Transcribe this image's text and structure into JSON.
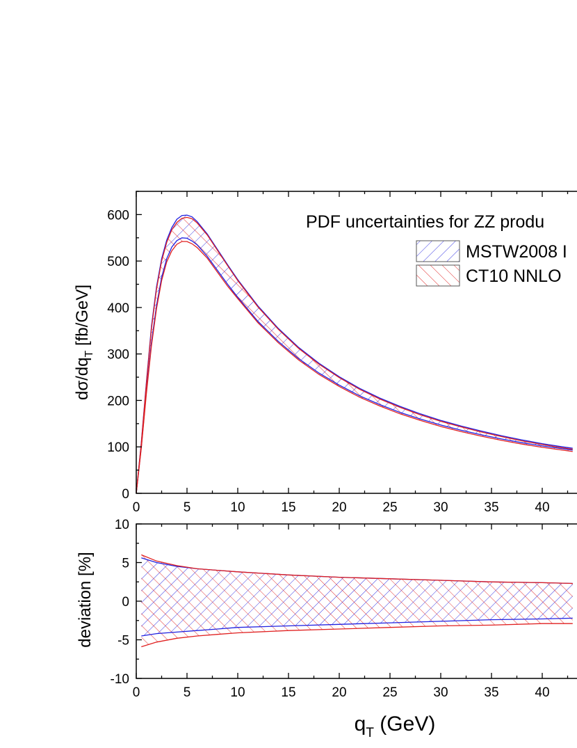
{
  "chart_data": [
    {
      "type": "area",
      "panel": "top",
      "title": "PDF uncertainties for ZZ produ",
      "ylabel_main": "dσ/dq",
      "ylabel_sub": "T",
      "ylabel_tail": " [fb/GeV]",
      "xlim": [
        0,
        43
      ],
      "ylim": [
        0,
        650
      ],
      "x_ticks": [
        "0",
        "5",
        "10",
        "15",
        "20",
        "25",
        "30",
        "35",
        "40"
      ],
      "y_ticks": [
        "0",
        "100",
        "200",
        "300",
        "400",
        "500",
        "600"
      ],
      "legend": {
        "placement": "top-right",
        "items": [
          {
            "label": "MSTW2008 I",
            "color": "#2020e0",
            "hatch": "forward"
          },
          {
            "label": "CT10 NNLO",
            "color": "#e02020",
            "hatch": "backward"
          }
        ]
      },
      "series": [
        {
          "name": "MSTW2008 I",
          "color": "#2020e0",
          "x": [
            0,
            0.5,
            1,
            1.5,
            2,
            2.5,
            3,
            3.5,
            4,
            4.5,
            5,
            5.5,
            6,
            7,
            8,
            9,
            10,
            12,
            14,
            16,
            18,
            20,
            22,
            24,
            26,
            28,
            30,
            32,
            34,
            36,
            38,
            40,
            42,
            43
          ],
          "upper": [
            0,
            110,
            240,
            360,
            445,
            505,
            545,
            572,
            590,
            598,
            599,
            595,
            585,
            558,
            525,
            492,
            460,
            403,
            355,
            314,
            280,
            251,
            226,
            205,
            187,
            171,
            157,
            145,
            134,
            124,
            115,
            107,
            100,
            97
          ],
          "lower": [
            0,
            100,
            220,
            325,
            405,
            465,
            505,
            530,
            544,
            550,
            549,
            543,
            535,
            510,
            480,
            450,
            422,
            370,
            327,
            290,
            259,
            233,
            210,
            191,
            174,
            160,
            147,
            136,
            126,
            117,
            109,
            102,
            96,
            93
          ]
        },
        {
          "name": "CT10 NNLO",
          "color": "#e02020",
          "x": [
            0,
            0.5,
            1,
            1.5,
            2,
            2.5,
            3,
            3.5,
            4,
            4.5,
            5,
            5.5,
            6,
            7,
            8,
            9,
            10,
            12,
            14,
            16,
            18,
            20,
            22,
            24,
            26,
            28,
            30,
            32,
            34,
            36,
            38,
            40,
            42,
            43
          ],
          "upper": [
            0,
            108,
            236,
            355,
            440,
            500,
            540,
            567,
            583,
            592,
            594,
            591,
            582,
            556,
            523,
            490,
            458,
            401,
            353,
            312,
            278,
            249,
            224,
            203,
            185,
            169,
            155,
            143,
            132,
            122,
            113,
            105,
            98,
            95
          ],
          "lower": [
            0,
            98,
            215,
            318,
            398,
            458,
            498,
            522,
            536,
            542,
            542,
            537,
            529,
            506,
            476,
            446,
            419,
            367,
            324,
            287,
            256,
            230,
            207,
            188,
            171,
            157,
            144,
            133,
            123,
            114,
            106,
            99,
            93,
            90
          ]
        }
      ]
    },
    {
      "type": "area",
      "panel": "bottom",
      "title": "",
      "ylabel": "deviation [%]",
      "xlabel_main": "q",
      "xlabel_sub": "T",
      "xlabel_tail": " (GeV)",
      "xlim": [
        0,
        43
      ],
      "ylim": [
        -10,
        10
      ],
      "x_ticks": [
        "0",
        "5",
        "10",
        "15",
        "20",
        "25",
        "30",
        "35",
        "40"
      ],
      "y_ticks": [
        "-10",
        "-5",
        "0",
        "5",
        "10"
      ],
      "series": [
        {
          "name": "MSTW2008 I",
          "color": "#2020e0",
          "x": [
            0.5,
            2,
            4,
            6,
            8,
            10,
            15,
            20,
            25,
            30,
            35,
            40,
            43
          ],
          "upper": [
            5.6,
            5.0,
            4.5,
            4.2,
            4.0,
            3.8,
            3.4,
            3.1,
            2.9,
            2.7,
            2.5,
            2.4,
            2.3
          ],
          "lower": [
            -4.5,
            -4.2,
            -4.0,
            -3.8,
            -3.6,
            -3.4,
            -3.2,
            -3.0,
            -2.8,
            -2.6,
            -2.4,
            -2.3,
            -2.2
          ]
        },
        {
          "name": "CT10 NNLO",
          "color": "#e02020",
          "x": [
            0.5,
            2,
            4,
            6,
            8,
            10,
            15,
            20,
            25,
            30,
            35,
            40,
            43
          ],
          "upper": [
            6.0,
            5.2,
            4.6,
            4.2,
            4.0,
            3.8,
            3.4,
            3.1,
            2.9,
            2.7,
            2.5,
            2.4,
            2.3
          ],
          "lower": [
            -5.9,
            -5.3,
            -4.8,
            -4.5,
            -4.3,
            -4.1,
            -3.8,
            -3.6,
            -3.4,
            -3.2,
            -3.1,
            -2.9,
            -2.9
          ]
        }
      ]
    }
  ]
}
